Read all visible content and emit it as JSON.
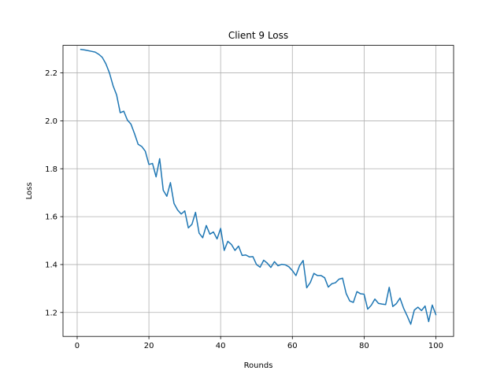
{
  "chart_data": {
    "type": "line",
    "title": "Client 9 Loss",
    "xlabel": "Rounds",
    "ylabel": "Loss",
    "xlim": [
      -3.95,
      104.95
    ],
    "ylim": [
      1.1,
      2.315
    ],
    "xticks": [
      0,
      20,
      40,
      60,
      80,
      100
    ],
    "yticks": [
      1.2,
      1.4,
      1.6,
      1.8,
      2.0,
      2.2
    ],
    "xtick_labels": [
      "0",
      "20",
      "40",
      "60",
      "80",
      "100"
    ],
    "ytick_labels": [
      "1.2",
      "1.4",
      "1.6",
      "1.8",
      "2.0",
      "2.2"
    ],
    "grid": true,
    "line_color": "#1f77b4",
    "series": [
      {
        "x": [
          1,
          2,
          3,
          4,
          5,
          6,
          7,
          8,
          9,
          10,
          11,
          12,
          13,
          14,
          15,
          16,
          17,
          18,
          19,
          20,
          21,
          22,
          23,
          24,
          25,
          26,
          27,
          28,
          29,
          30,
          31,
          32,
          33,
          34,
          35,
          36,
          37,
          38,
          39,
          40,
          41,
          42,
          43,
          44,
          45,
          46,
          47,
          48,
          49,
          50,
          51,
          52,
          53,
          54,
          55,
          56,
          57,
          58,
          59,
          60,
          61,
          62,
          63,
          64,
          65,
          66,
          67,
          68,
          69,
          70,
          71,
          72,
          73,
          74,
          75,
          76,
          77,
          78,
          79,
          80,
          81,
          82,
          83,
          84,
          85,
          86,
          87,
          88,
          89,
          90,
          91,
          92,
          93,
          94,
          95,
          96,
          97,
          98,
          99,
          100
        ],
        "values": [
          2.298,
          2.296,
          2.293,
          2.29,
          2.287,
          2.278,
          2.265,
          2.238,
          2.2,
          2.147,
          2.108,
          2.034,
          2.04,
          2.003,
          1.986,
          1.946,
          1.902,
          1.893,
          1.873,
          1.818,
          1.822,
          1.766,
          1.842,
          1.71,
          1.685,
          1.742,
          1.655,
          1.628,
          1.611,
          1.624,
          1.553,
          1.568,
          1.618,
          1.531,
          1.512,
          1.563,
          1.527,
          1.536,
          1.507,
          1.551,
          1.459,
          1.497,
          1.484,
          1.459,
          1.477,
          1.438,
          1.44,
          1.432,
          1.433,
          1.4,
          1.389,
          1.418,
          1.406,
          1.388,
          1.412,
          1.395,
          1.401,
          1.399,
          1.391,
          1.375,
          1.354,
          1.395,
          1.417,
          1.303,
          1.325,
          1.363,
          1.354,
          1.354,
          1.345,
          1.306,
          1.32,
          1.324,
          1.339,
          1.343,
          1.279,
          1.248,
          1.242,
          1.287,
          1.278,
          1.276,
          1.214,
          1.23,
          1.256,
          1.238,
          1.235,
          1.233,
          1.305,
          1.225,
          1.237,
          1.26,
          1.218,
          1.186,
          1.151,
          1.21,
          1.222,
          1.208,
          1.227,
          1.162,
          1.231,
          1.191
        ]
      }
    ]
  }
}
